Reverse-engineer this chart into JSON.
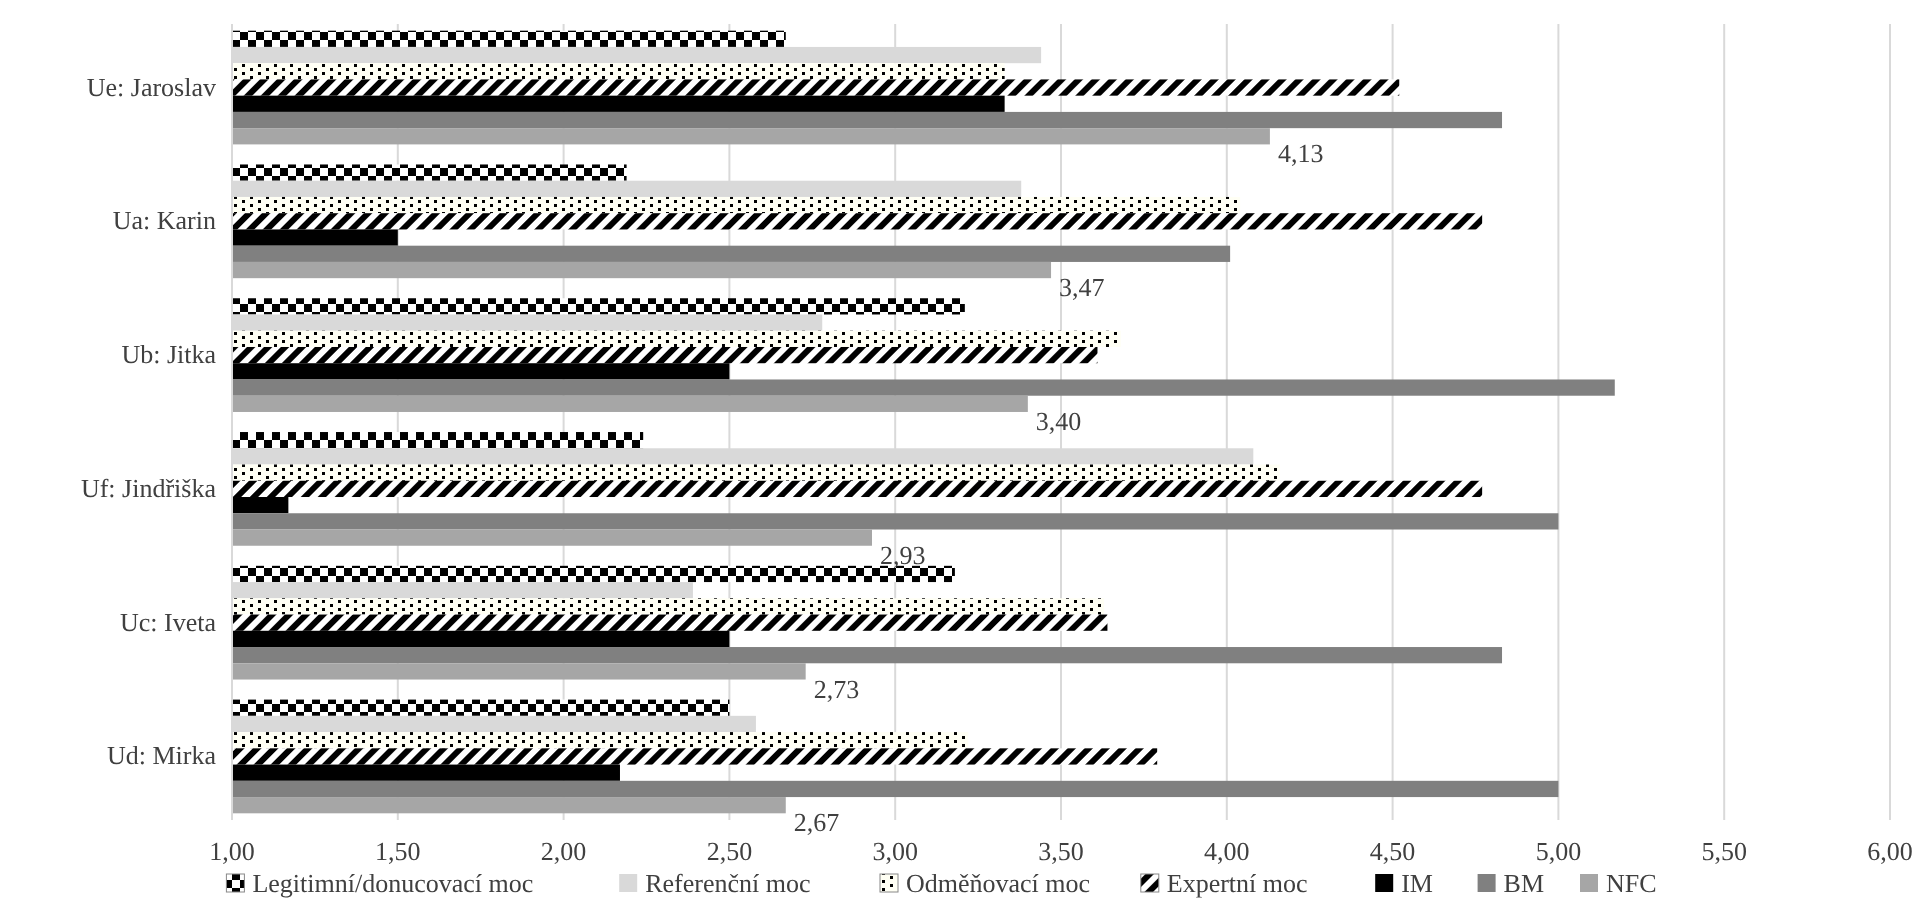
{
  "chart_data": {
    "type": "bar",
    "orientation": "horizontal",
    "categories": [
      "Ue: Jaroslav",
      "Ua: Karin",
      "Ub: Jitka",
      "Uf: Jindřiška",
      "Uc: Iveta",
      "Ud: Mirka"
    ],
    "series": [
      {
        "name": "Legitimní/donucovací moc",
        "color": "#000000",
        "values": [
          2.67,
          2.19,
          3.21,
          2.24,
          3.18,
          2.5
        ]
      },
      {
        "name": "Referenční moc",
        "color": "#d9d9d9",
        "values": [
          3.44,
          3.38,
          2.78,
          4.08,
          2.39,
          2.58
        ]
      },
      {
        "name": "Odměňovací moc",
        "color": "#000000",
        "values": [
          3.33,
          4.04,
          3.68,
          4.16,
          3.63,
          3.22
        ]
      },
      {
        "name": "Expertní moc",
        "color": "#000000",
        "values": [
          4.52,
          4.77,
          3.61,
          4.77,
          3.64,
          3.79
        ]
      },
      {
        "name": "IM",
        "color": "#000000",
        "values": [
          3.33,
          1.5,
          2.5,
          1.17,
          2.5,
          2.17
        ]
      },
      {
        "name": "BM",
        "color": "#808080",
        "values": [
          4.83,
          4.01,
          5.17,
          5.0,
          4.83,
          5.0
        ]
      },
      {
        "name": "NFC",
        "color": "#a6a6a6",
        "values": [
          4.13,
          3.47,
          3.4,
          2.93,
          2.73,
          2.67
        ],
        "value_labels": [
          "4,13",
          "3,47",
          "3,40",
          "2,93",
          "2,73",
          "2,67"
        ]
      }
    ],
    "xlim": [
      1,
      6
    ],
    "xticks": [
      {
        "value": 1,
        "label": "1,00"
      },
      {
        "value": 1.5,
        "label": "1,50"
      },
      {
        "value": 2,
        "label": "2,00"
      },
      {
        "value": 2.5,
        "label": "2,50"
      },
      {
        "value": 3,
        "label": "3,00"
      },
      {
        "value": 3.5,
        "label": "3,50"
      },
      {
        "value": 4,
        "label": "4,00"
      },
      {
        "value": 4.5,
        "label": "4,50"
      },
      {
        "value": 5,
        "label": "5,00"
      },
      {
        "value": 5.5,
        "label": "5,50"
      },
      {
        "value": 6,
        "label": "6,00"
      }
    ],
    "grid": "x",
    "legend": "bottom"
  }
}
